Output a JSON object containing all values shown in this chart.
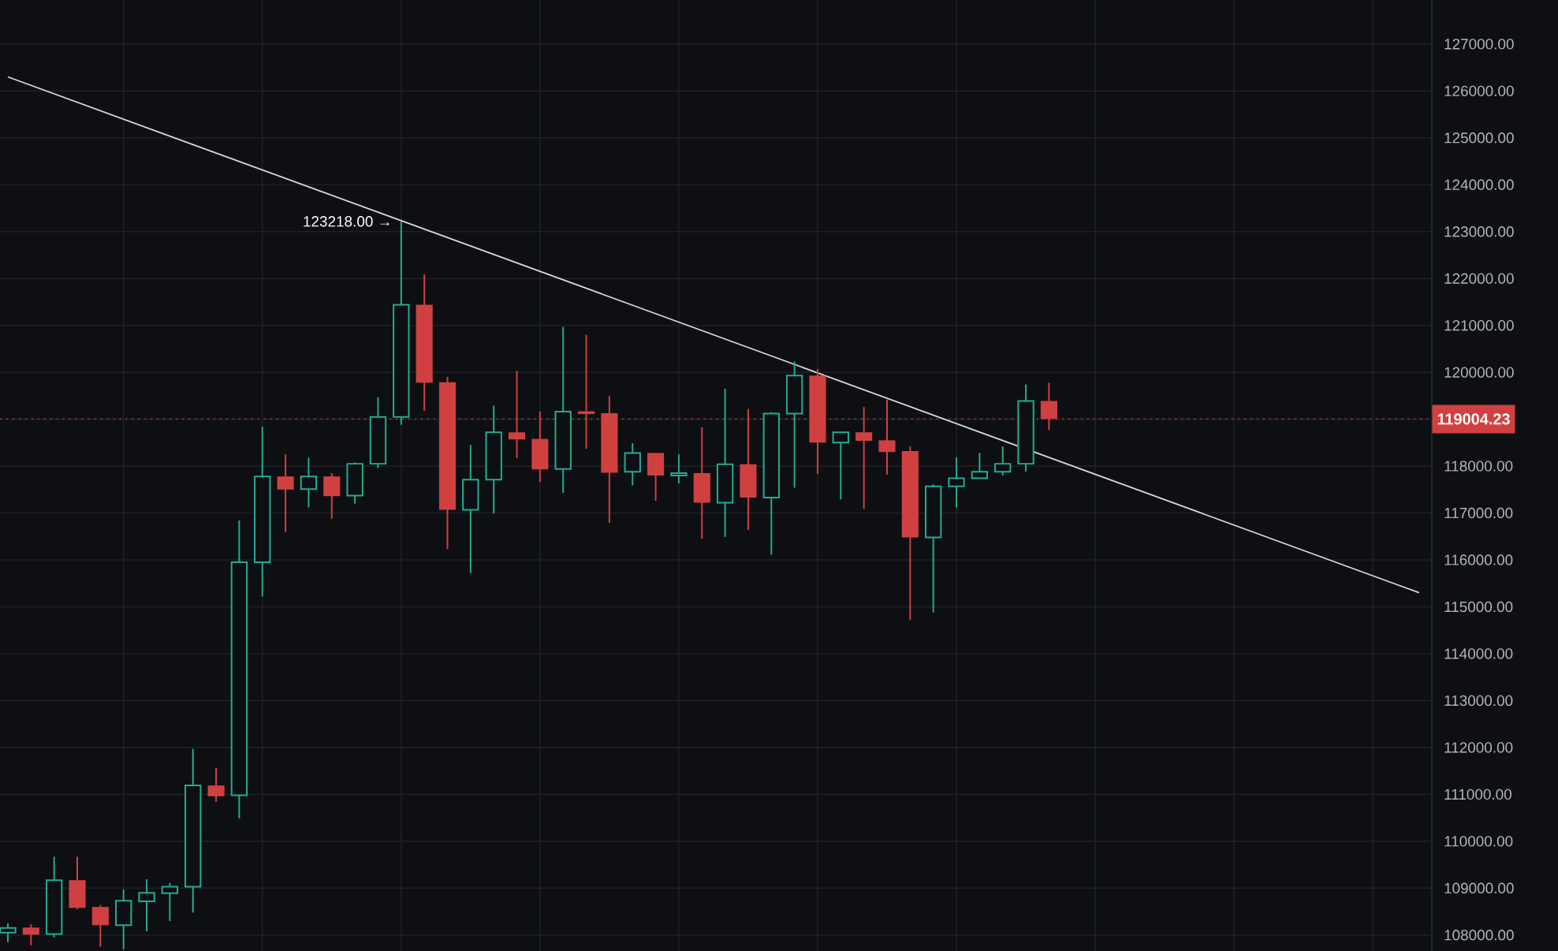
{
  "chart_data": {
    "type": "candlestick",
    "categories": [
      null,
      null,
      null,
      null,
      null,
      null,
      null,
      null,
      null,
      null,
      null,
      null,
      null,
      null,
      null,
      null,
      null,
      null,
      null,
      null,
      null,
      null,
      null,
      null,
      null,
      null,
      null,
      null,
      null,
      null,
      null,
      null,
      null,
      null,
      null,
      null,
      null,
      null,
      null,
      null,
      null,
      null,
      null,
      null,
      null,
      null,
      null,
      null,
      null,
      null,
      null,
      null,
      null,
      null,
      null,
      null,
      null,
      null,
      null,
      null,
      null,
      null
    ],
    "series": [
      {
        "ohlc": [
          [
            108050,
            108250,
            107850,
            108150
          ],
          [
            108160,
            108230,
            107780,
            108010
          ],
          [
            108020,
            109670,
            107950,
            109170
          ],
          [
            109170,
            109670,
            108550,
            108580
          ],
          [
            108600,
            108640,
            107750,
            108210
          ],
          [
            108210,
            108970,
            107700,
            108730
          ],
          [
            108720,
            109190,
            108080,
            108900
          ],
          [
            108890,
            109110,
            108300,
            109030
          ],
          [
            109030,
            111970,
            108480,
            111190
          ],
          [
            111190,
            111560,
            110840,
            110960
          ],
          [
            110980,
            116840,
            110490,
            115950
          ],
          [
            115950,
            118840,
            115220,
            117780
          ],
          [
            117780,
            118250,
            116590,
            117500
          ],
          [
            117510,
            118180,
            117120,
            117780
          ],
          [
            117780,
            117850,
            116880,
            117360
          ],
          [
            117370,
            118080,
            117200,
            118050
          ],
          [
            118050,
            119470,
            117960,
            119050
          ],
          [
            119050,
            123218,
            118880,
            121440
          ],
          [
            121440,
            122090,
            119180,
            119780
          ],
          [
            119790,
            119900,
            116230,
            117070
          ],
          [
            117070,
            118450,
            115720,
            117710
          ],
          [
            117710,
            119290,
            116990,
            118720
          ],
          [
            118720,
            120030,
            118170,
            118570
          ],
          [
            118580,
            119170,
            117660,
            117930
          ],
          [
            117940,
            120970,
            117430,
            119160
          ],
          [
            119170,
            120800,
            118370,
            119110
          ],
          [
            119130,
            119500,
            116790,
            117860
          ],
          [
            117880,
            118490,
            117590,
            118280
          ],
          [
            118280,
            118280,
            117260,
            117800
          ],
          [
            117800,
            118250,
            117630,
            117850
          ],
          [
            117850,
            118830,
            116450,
            117220
          ],
          [
            117220,
            119650,
            116490,
            118040
          ],
          [
            118040,
            119220,
            116640,
            117330
          ],
          [
            117330,
            119150,
            116110,
            119120
          ],
          [
            119120,
            120230,
            117540,
            119930
          ],
          [
            119930,
            120070,
            117830,
            118500
          ],
          [
            118500,
            118720,
            117290,
            118720
          ],
          [
            118720,
            119260,
            117090,
            118540
          ],
          [
            118550,
            119420,
            117820,
            118300
          ],
          [
            118320,
            118420,
            114720,
            116480
          ],
          [
            116480,
            117610,
            114880,
            117570
          ],
          [
            117570,
            118190,
            117120,
            117740
          ],
          [
            117740,
            118280,
            117740,
            117880
          ],
          [
            117880,
            118420,
            117800,
            118050
          ],
          [
            118050,
            119740,
            117880,
            119390
          ],
          [
            119390,
            119780,
            118770,
            119004.23
          ],
          null,
          null,
          null,
          null,
          null,
          null,
          null,
          null,
          null,
          null,
          null,
          null,
          null,
          null,
          null,
          null
        ],
        "colors": [
          "#22ab94",
          "#d14040",
          "#22ab94",
          "#d14040",
          "#d14040",
          "#22ab94",
          "#22ab94",
          "#22ab94",
          "#22ab94",
          "#d14040",
          "#22ab94",
          "#22ab94",
          "#d14040",
          "#22ab94",
          "#d14040",
          "#22ab94",
          "#22ab94",
          "#22ab94",
          "#d14040",
          "#d14040",
          "#22ab94",
          "#22ab94",
          "#d14040",
          "#d14040",
          "#22ab94",
          "#d14040",
          "#d14040",
          "#22ab94",
          "#d14040",
          "#22ab94",
          "#d14040",
          "#22ab94",
          "#d14040",
          "#22ab94",
          "#22ab94",
          "#d14040",
          "#22ab94",
          "#d14040",
          "#d14040",
          "#d14040",
          "#22ab94",
          "#22ab94",
          "#22ab94",
          "#22ab94",
          "#22ab94",
          "#d14040",
          null,
          null,
          null,
          null,
          null,
          null,
          null,
          null,
          null,
          null,
          null,
          null,
          null,
          null,
          null,
          null
        ]
      },
      {
        "type": "line",
        "color": "#d8d8d8",
        "values": [
          126300,
          null,
          null,
          null,
          null,
          null,
          null,
          null,
          null,
          null,
          null,
          null,
          null,
          null,
          null,
          null,
          null,
          null,
          null,
          null,
          null,
          null,
          null,
          null,
          null,
          null,
          null,
          null,
          null,
          null,
          null,
          null,
          null,
          null,
          null,
          null,
          null,
          null,
          null,
          null,
          null,
          null,
          null,
          null,
          null,
          null,
          null,
          null,
          null,
          null,
          null,
          null,
          null,
          null,
          null,
          null,
          null,
          null,
          null,
          null,
          null,
          115300
        ]
      }
    ],
    "ylim": [
      107660,
      127940
    ],
    "yticks": [
      {
        "value": 108000,
        "label": "108000.00"
      },
      {
        "value": 109000,
        "label": "109000.00"
      },
      {
        "value": 110000,
        "label": "110000.00"
      },
      {
        "value": 111000,
        "label": "111000.00"
      },
      {
        "value": 112000,
        "label": "112000.00"
      },
      {
        "value": 113000,
        "label": "113000.00"
      },
      {
        "value": 114000,
        "label": "114000.00"
      },
      {
        "value": 115000,
        "label": "115000.00"
      },
      {
        "value": 116000,
        "label": "116000.00"
      },
      {
        "value": 117000,
        "label": "117000.00"
      },
      {
        "value": 118000,
        "label": "118000.00"
      },
      {
        "value": 119000,
        "label": null
      },
      {
        "value": 120000,
        "label": "120000.00"
      },
      {
        "value": 121000,
        "label": "121000.00"
      },
      {
        "value": 122000,
        "label": "122000.00"
      },
      {
        "value": 123000,
        "label": "123000.00"
      },
      {
        "value": 124000,
        "label": "124000.00"
      },
      {
        "value": 125000,
        "label": "125000.00"
      },
      {
        "value": 126000,
        "label": "126000.00"
      },
      {
        "value": 127000,
        "label": "127000.00"
      }
    ],
    "tick_labels": "y",
    "grid": true,
    "ref_lines": [
      {
        "axis": "y",
        "value": 119004.23,
        "label": "119004.23",
        "color": "#d14040"
      }
    ],
    "annotations": [
      "123218.00 →"
    ]
  }
}
